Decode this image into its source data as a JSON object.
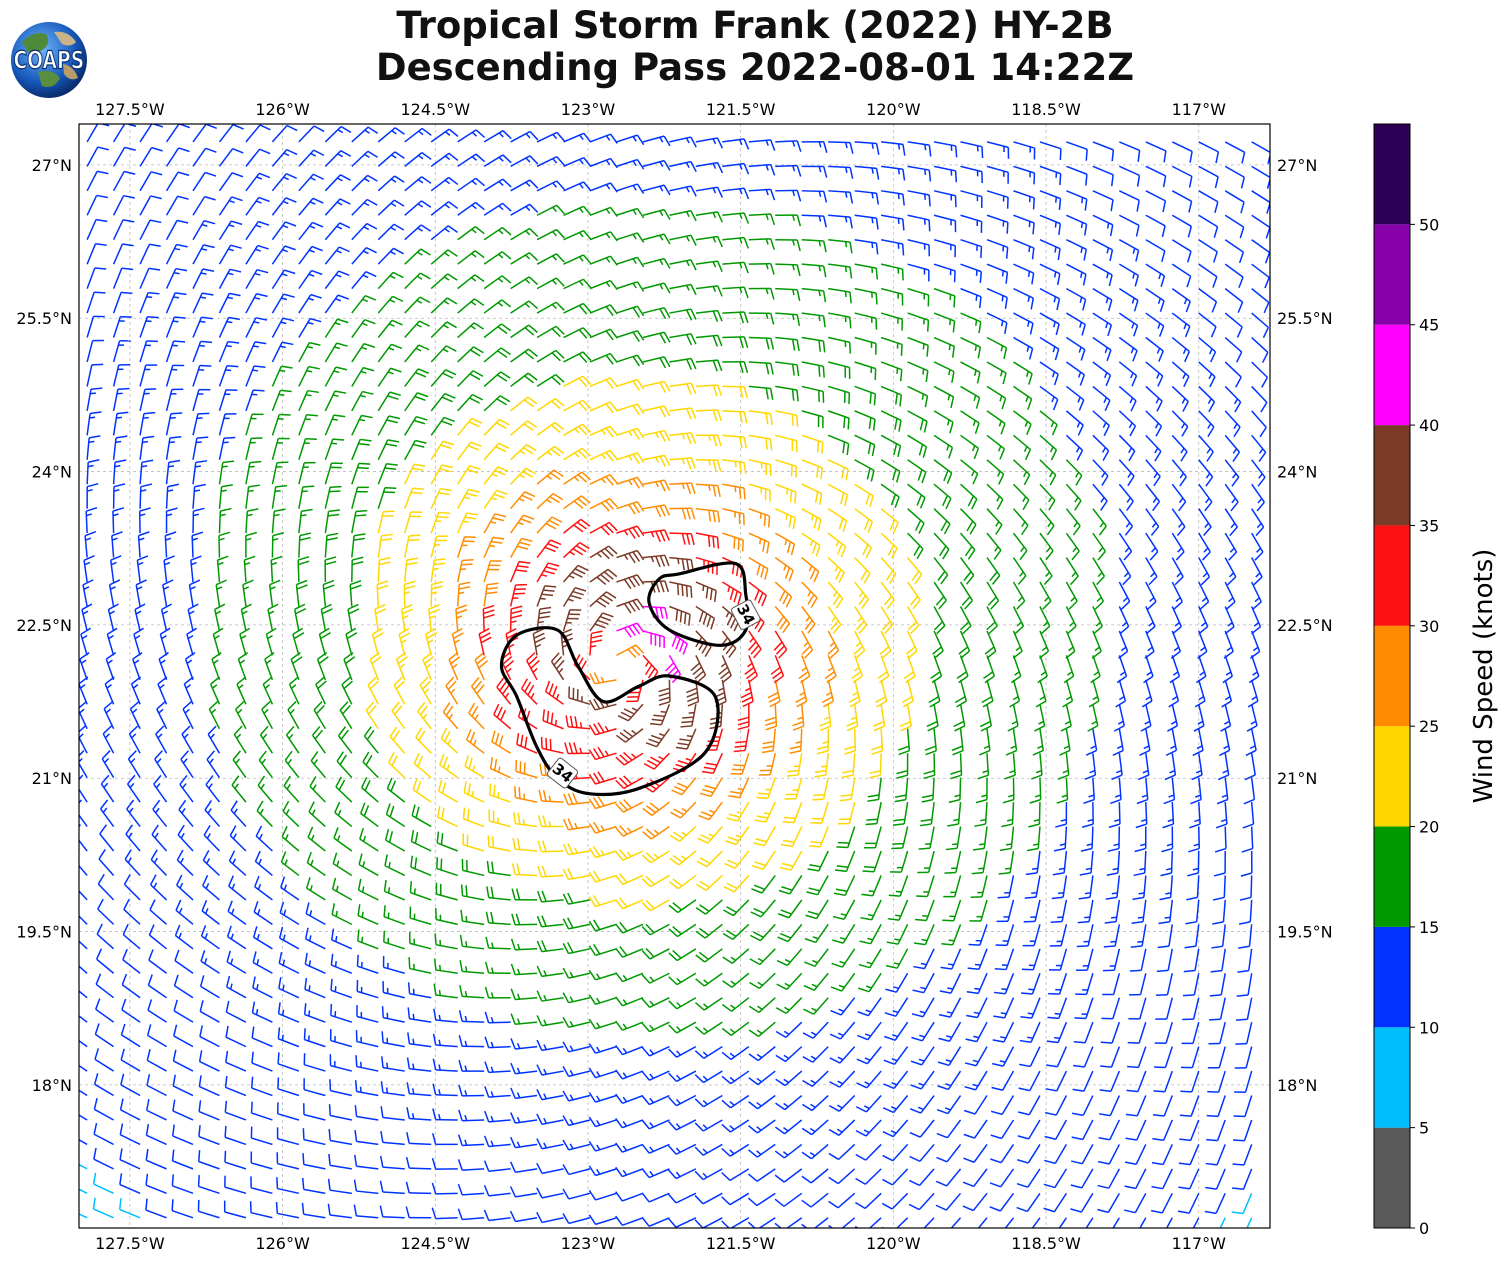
{
  "title": {
    "line1": "Tropical Storm Frank (2022) HY-2B",
    "line2": "Descending Pass 2022-08-01 14:22Z"
  },
  "logo": {
    "name": "COAPS",
    "icon": "earth-globe-logo"
  },
  "map": {
    "lon_range": [
      -128.0,
      -116.3
    ],
    "lat_range": [
      16.6,
      27.4
    ],
    "lon_ticks": [
      "127.5°W",
      "126°W",
      "124.5°W",
      "123°W",
      "121.5°W",
      "120°W",
      "118.5°W",
      "117°W"
    ],
    "lon_tick_values": [
      -127.5,
      -126.0,
      -124.5,
      -123.0,
      -121.5,
      -120.0,
      -118.5,
      -117.0
    ],
    "lat_ticks": [
      "27°N",
      "25.5°N",
      "24°N",
      "22.5°N",
      "21°N",
      "19.5°N",
      "18°N"
    ],
    "lat_tick_values": [
      27.0,
      25.5,
      24.0,
      22.5,
      21.0,
      19.5,
      18.0
    ],
    "gridlines": true,
    "storm_center": {
      "lon": -122.7,
      "lat": 22.1
    },
    "contour": {
      "level_label": "34",
      "value_kt": 34,
      "regions": [
        [
          [
            -122.1,
            23.0
          ],
          [
            -121.55,
            23.1
          ],
          [
            -121.45,
            22.8
          ],
          [
            -121.45,
            22.45
          ],
          [
            -121.7,
            22.3
          ],
          [
            -122.2,
            22.45
          ],
          [
            -122.4,
            22.72
          ],
          [
            -122.3,
            22.95
          ]
        ],
        [
          [
            -123.7,
            22.4
          ],
          [
            -123.3,
            22.45
          ],
          [
            -123.1,
            22.1
          ],
          [
            -122.85,
            21.75
          ],
          [
            -122.5,
            21.9
          ],
          [
            -122.2,
            22.0
          ],
          [
            -121.75,
            21.8
          ],
          [
            -121.85,
            21.25
          ],
          [
            -122.5,
            20.9
          ],
          [
            -123.0,
            20.85
          ],
          [
            -123.3,
            21.0
          ],
          [
            -123.5,
            21.3
          ],
          [
            -123.7,
            21.8
          ],
          [
            -123.85,
            22.1
          ]
        ]
      ],
      "label_positions": [
        [
          -121.45,
          22.6
        ],
        [
          -123.25,
          21.05
        ]
      ]
    },
    "wind_barbs": "synthetic cyclonic wind field; barb colors follow colorbar bins"
  },
  "colorbar": {
    "label": "Wind Speed (knots)",
    "ticks": [
      "0",
      "5",
      "10",
      "15",
      "20",
      "25",
      "30",
      "35",
      "40",
      "45",
      "50"
    ],
    "bins": [
      {
        "min": 0,
        "max": 5,
        "color": "#5a5a5a"
      },
      {
        "min": 5,
        "max": 10,
        "color": "#00bfff"
      },
      {
        "min": 10,
        "max": 15,
        "color": "#0033ff"
      },
      {
        "min": 15,
        "max": 20,
        "color": "#009900"
      },
      {
        "min": 20,
        "max": 25,
        "color": "#ffd700"
      },
      {
        "min": 25,
        "max": 30,
        "color": "#ff8c00"
      },
      {
        "min": 30,
        "max": 35,
        "color": "#ff1111"
      },
      {
        "min": 35,
        "max": 40,
        "color": "#7b3a26"
      },
      {
        "min": 40,
        "max": 45,
        "color": "#ff00ff"
      },
      {
        "min": 45,
        "max": 50,
        "color": "#8800aa"
      },
      {
        "min": 50,
        "max": 55,
        "color": "#2b0055"
      }
    ]
  }
}
